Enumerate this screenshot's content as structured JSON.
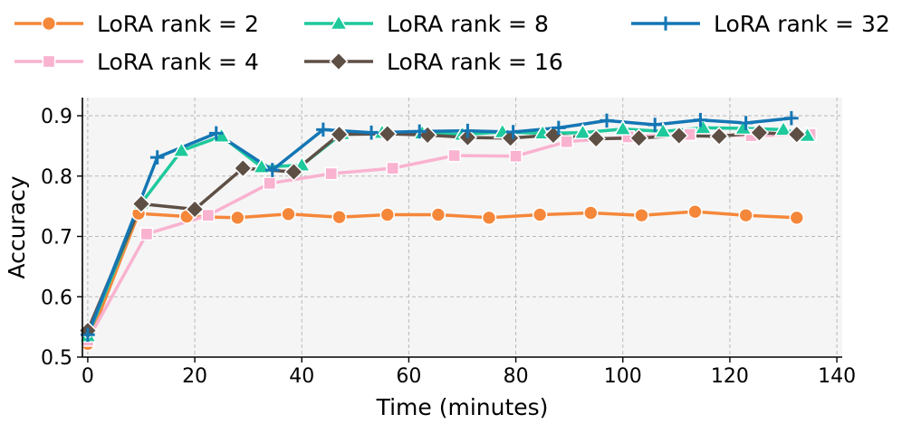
{
  "chart_data": {
    "type": "line",
    "title": "",
    "xlabel": "Time (minutes)",
    "ylabel": "Accuracy",
    "xlim": [
      -1,
      141
    ],
    "ylim": [
      0.5,
      0.93
    ],
    "xticks": [
      0,
      20,
      40,
      60,
      80,
      100,
      120,
      140
    ],
    "yticks": [
      0.5,
      0.6,
      0.7,
      0.8,
      0.9
    ],
    "xtick_labels": [
      "0",
      "20",
      "40",
      "60",
      "80",
      "100",
      "120",
      "140"
    ],
    "ytick_labels": [
      "0.5",
      "0.6",
      "0.7",
      "0.8",
      "0.9"
    ],
    "grid": true,
    "legend_position": "top",
    "series": [
      {
        "name": "LoRA rank = 2",
        "color": "#f5873a",
        "marker": "circle",
        "x": [
          0,
          9.5,
          18.5,
          28,
          37.5,
          47,
          56,
          65.5,
          75,
          84.5,
          94,
          103.5,
          113.5,
          123,
          132.5
        ],
        "y": [
          0.522,
          0.738,
          0.733,
          0.731,
          0.737,
          0.732,
          0.736,
          0.736,
          0.731,
          0.736,
          0.739,
          0.735,
          0.741,
          0.735,
          0.731
        ]
      },
      {
        "name": "LoRA rank = 4",
        "color": "#f9b2d0",
        "marker": "square",
        "x": [
          0,
          11,
          22.5,
          34,
          45.5,
          57,
          68.5,
          80,
          89.5,
          101,
          112.5,
          124,
          135
        ],
        "y": [
          0.528,
          0.704,
          0.735,
          0.788,
          0.804,
          0.813,
          0.834,
          0.833,
          0.857,
          0.865,
          0.869,
          0.867,
          0.869
        ]
      },
      {
        "name": "LoRA rank = 8",
        "color": "#1ec99c",
        "marker": "triangle",
        "x": [
          0,
          10,
          17.5,
          25,
          32.5,
          40,
          47.5,
          55,
          62.5,
          70,
          77.5,
          85,
          92.5,
          100,
          107.5,
          115,
          122.5,
          130,
          134.5
        ],
        "y": [
          0.535,
          0.755,
          0.842,
          0.866,
          0.815,
          0.818,
          0.87,
          0.872,
          0.871,
          0.869,
          0.873,
          0.871,
          0.872,
          0.878,
          0.874,
          0.88,
          0.879,
          0.877,
          0.867
        ]
      },
      {
        "name": "LoRA rank = 16",
        "color": "#5e4f45",
        "marker": "diamond",
        "x": [
          0,
          10,
          20,
          29,
          38.5,
          47,
          56,
          63.5,
          71,
          79,
          87,
          95,
          103,
          110.5,
          118,
          125.5,
          132.5
        ],
        "y": [
          0.544,
          0.754,
          0.745,
          0.813,
          0.807,
          0.869,
          0.87,
          0.868,
          0.864,
          0.863,
          0.868,
          0.862,
          0.863,
          0.867,
          0.866,
          0.872,
          0.869
        ]
      },
      {
        "name": "LoRA rank = 32",
        "color": "#1476b4",
        "marker": "plus",
        "x": [
          0,
          13,
          24,
          34.5,
          44,
          53,
          62,
          71,
          79.5,
          88,
          97,
          106,
          114.5,
          123,
          131.5
        ],
        "y": [
          0.537,
          0.831,
          0.871,
          0.81,
          0.877,
          0.872,
          0.874,
          0.875,
          0.873,
          0.88,
          0.892,
          0.885,
          0.893,
          0.888,
          0.896
        ]
      }
    ]
  }
}
